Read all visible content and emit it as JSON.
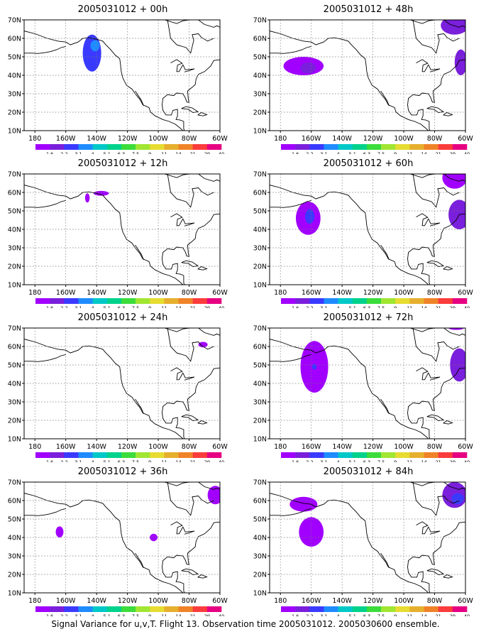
{
  "figure": {
    "caption": "Signal Variance for u,v,T. Flight 13. Observation time 2005031012. 2005030600 ensemble."
  },
  "map": {
    "lon_range": [
      -187,
      -60
    ],
    "lat_range": [
      10,
      70
    ],
    "x_tick_labels": [
      "180",
      "160W",
      "140W",
      "120W",
      "100W",
      "80W",
      "60W"
    ],
    "x_tick_lons": [
      -180,
      -160,
      -140,
      -120,
      -100,
      -80,
      -60
    ],
    "y_tick_labels": [
      "10N",
      "20N",
      "30N",
      "40N",
      "50N",
      "60N",
      "70N"
    ],
    "y_tick_lats": [
      10,
      20,
      30,
      40,
      50,
      60,
      70
    ],
    "gridlines": "dotted"
  },
  "colorbar": {
    "labels": [
      "1.6",
      "2.2",
      "3.1",
      "4",
      "5.1",
      "6.3",
      "7.5",
      "9",
      "11",
      "14",
      "21",
      "29",
      "40"
    ],
    "colors": [
      "#a100ff",
      "#7a1fdb",
      "#3a3aff",
      "#1e8cff",
      "#00c8c8",
      "#00d28c",
      "#3cdc3c",
      "#a0e632",
      "#e6dc32",
      "#e6af2d",
      "#f08228",
      "#fa3c3c",
      "#e60082"
    ]
  },
  "panels": [
    {
      "title": "2005031012 + 00h",
      "blobs": [
        {
          "lon": -143,
          "lat": 52,
          "rx": 6,
          "ry": 10,
          "level": 2
        },
        {
          "lon": -141,
          "lat": 56,
          "rx": 3,
          "ry": 3,
          "level": 3
        }
      ]
    },
    {
      "title": "2005031012 + 12h",
      "blobs": [
        {
          "lon": -146,
          "lat": 57,
          "rx": 1.5,
          "ry": 2.5,
          "level": 0
        },
        {
          "lon": -137,
          "lat": 59.5,
          "rx": 5,
          "ry": 1.3,
          "level": 0
        }
      ]
    },
    {
      "title": "2005031012 + 24h",
      "blobs": [
        {
          "lon": -71,
          "lat": 61,
          "rx": 3,
          "ry": 1.5,
          "level": 0
        }
      ]
    },
    {
      "title": "2005031012 + 36h",
      "blobs": [
        {
          "lon": -164,
          "lat": 43,
          "rx": 2.5,
          "ry": 3,
          "level": 0
        },
        {
          "lon": -103,
          "lat": 40,
          "rx": 2.5,
          "ry": 2,
          "level": 0
        },
        {
          "lon": -63,
          "lat": 63,
          "rx": 5,
          "ry": 5,
          "level": 0
        }
      ]
    },
    {
      "title": "2005031012 + 48h",
      "blobs": [
        {
          "lon": -165,
          "lat": 45,
          "rx": 13,
          "ry": 5,
          "level": 0
        },
        {
          "lon": -162,
          "lat": 44,
          "rx": 5,
          "ry": 3,
          "level": 1
        },
        {
          "lon": -67,
          "lat": 67,
          "rx": 9,
          "ry": 5,
          "level": 1
        },
        {
          "lon": -63,
          "lat": 47,
          "rx": 4,
          "ry": 7,
          "level": 1
        }
      ]
    },
    {
      "title": "2005031012 + 60h",
      "blobs": [
        {
          "lon": -162,
          "lat": 46,
          "rx": 8,
          "ry": 9,
          "level": 0
        },
        {
          "lon": -161,
          "lat": 47,
          "rx": 3,
          "ry": 4,
          "level": 2
        },
        {
          "lon": -67,
          "lat": 68,
          "rx": 8,
          "ry": 6,
          "level": 0
        },
        {
          "lon": -64,
          "lat": 48,
          "rx": 7,
          "ry": 8,
          "level": 1
        }
      ]
    },
    {
      "title": "2005031012 + 72h",
      "blobs": [
        {
          "lon": -158,
          "lat": 49,
          "rx": 9,
          "ry": 14,
          "level": 0
        },
        {
          "lon": -158,
          "lat": 49,
          "rx": 1.5,
          "ry": 1.5,
          "level": 2
        },
        {
          "lon": -66,
          "lat": 70,
          "rx": 5,
          "ry": 1,
          "level": 0
        },
        {
          "lon": -64,
          "lat": 50,
          "rx": 6,
          "ry": 9,
          "level": 1
        }
      ]
    },
    {
      "title": "2005031012 + 84h",
      "blobs": [
        {
          "lon": -160,
          "lat": 43,
          "rx": 8,
          "ry": 8,
          "level": 0
        },
        {
          "lon": -165,
          "lat": 58,
          "rx": 9,
          "ry": 4,
          "level": 0
        },
        {
          "lon": -67,
          "lat": 63,
          "rx": 8,
          "ry": 7,
          "level": 1
        },
        {
          "lon": -65,
          "lat": 61,
          "rx": 4,
          "ry": 3,
          "level": 2
        }
      ]
    }
  ]
}
